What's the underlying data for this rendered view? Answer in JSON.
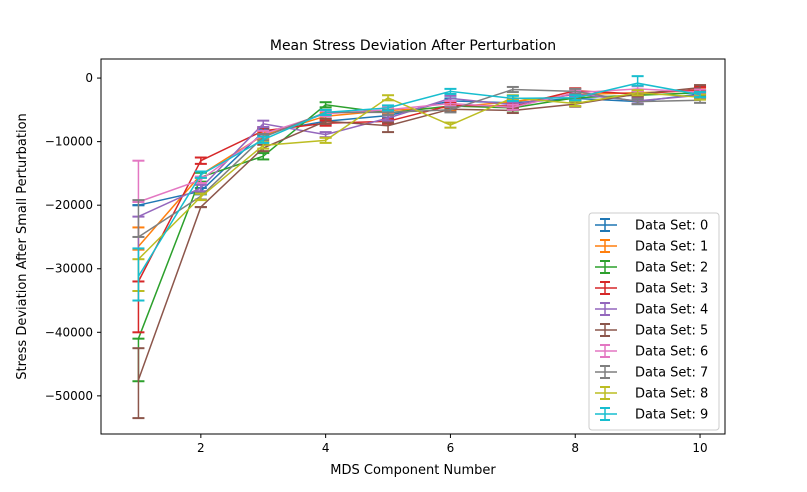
{
  "chart_data": {
    "type": "line",
    "title": "Mean Stress Deviation After Perturbation",
    "xlabel": "MDS Component Number",
    "ylabel": "Stress Deviation After Small Perturbation",
    "xlim": [
      0.4,
      10.4
    ],
    "ylim": [
      -56000,
      3000
    ],
    "xticks": [
      2,
      4,
      6,
      8,
      10
    ],
    "yticks": [
      0,
      -10000,
      -20000,
      -30000,
      -40000,
      -50000
    ],
    "xtick_labels": [
      "2",
      "4",
      "6",
      "8",
      "10"
    ],
    "ytick_labels": [
      "0",
      "−10000",
      "−20000",
      "−30000",
      "−40000",
      "−50000"
    ],
    "grid": false,
    "legend_position": "lower-right",
    "x": [
      1,
      2,
      3,
      4,
      5,
      6,
      7,
      8,
      9,
      10
    ],
    "series": [
      {
        "name": "Data Set: 0",
        "color": "#1f77b4",
        "values": [
          -20000,
          -17800,
          -8500,
          -6800,
          -5900,
          -3600,
          -3900,
          -3200,
          -3700,
          -2500
        ],
        "err_low": [
          -20000,
          -18300,
          -9000,
          -7200,
          -6300,
          -4000,
          -4300,
          -3600,
          -4100,
          -2900
        ],
        "err_high": [
          -20000,
          -17300,
          -8000,
          -6400,
          -5500,
          -3200,
          -3500,
          -2800,
          -3300,
          -2100
        ]
      },
      {
        "name": "Data Set: 1",
        "color": "#ff7f0e",
        "values": [
          -26500,
          -15200,
          -9000,
          -6000,
          -5100,
          -4600,
          -3700,
          -2600,
          -2300,
          -2000
        ],
        "err_low": [
          -27000,
          -15700,
          -9500,
          -6500,
          -5600,
          -5100,
          -4200,
          -3100,
          -2800,
          -2500
        ],
        "err_high": [
          -23500,
          -14700,
          -8500,
          -5500,
          -4600,
          -4100,
          -3200,
          -2100,
          -1800,
          -1500
        ]
      },
      {
        "name": "Data Set: 2",
        "color": "#2ca02c",
        "values": [
          -41000,
          -15600,
          -12300,
          -4200,
          -5500,
          -4400,
          -4700,
          -3100,
          -2700,
          -2300
        ],
        "err_low": [
          -47700,
          -16300,
          -12800,
          -4600,
          -5900,
          -4800,
          -5100,
          -3500,
          -3100,
          -2700
        ],
        "err_high": [
          -41000,
          -14900,
          -11800,
          -3800,
          -5100,
          -4000,
          -4300,
          -2700,
          -2300,
          -1900
        ]
      },
      {
        "name": "Data Set: 3",
        "color": "#d62728",
        "values": [
          -32000,
          -13000,
          -8300,
          -7100,
          -6800,
          -4300,
          -4400,
          -2000,
          -2500,
          -1800
        ],
        "err_low": [
          -40000,
          -13500,
          -8800,
          -7500,
          -7200,
          -4700,
          -4800,
          -2400,
          -2900,
          -2200
        ],
        "err_high": [
          -32000,
          -12500,
          -7800,
          -6700,
          -6400,
          -3900,
          -4000,
          -1600,
          -2100,
          -1400
        ]
      },
      {
        "name": "Data Set: 4",
        "color": "#9467bd",
        "values": [
          -21800,
          -17300,
          -7200,
          -8900,
          -6300,
          -3200,
          -4200,
          -2500,
          -3600,
          -2700
        ],
        "err_low": [
          -33500,
          -17800,
          -7700,
          -9300,
          -6700,
          -3600,
          -4600,
          -2900,
          -4000,
          -3100
        ],
        "err_high": [
          -21800,
          -16800,
          -6700,
          -8500,
          -5900,
          -2800,
          -3800,
          -2100,
          -3200,
          -2300
        ]
      },
      {
        "name": "Data Set: 5",
        "color": "#8c564b",
        "values": [
          -47500,
          -20300,
          -11000,
          -6800,
          -7500,
          -4900,
          -5100,
          -4100,
          -2500,
          -1500
        ],
        "err_low": [
          -53500,
          -20300,
          -11500,
          -7200,
          -8500,
          -5300,
          -5500,
          -4500,
          -2900,
          -1900
        ],
        "err_high": [
          -42500,
          -20300,
          -10500,
          -6400,
          -7000,
          -4500,
          -4700,
          -3700,
          -2100,
          -1100
        ]
      },
      {
        "name": "Data Set: 6",
        "color": "#e377c2",
        "values": [
          -19500,
          -16000,
          -8800,
          -5600,
          -5000,
          -4000,
          -4600,
          -2300,
          -1700,
          -2200
        ],
        "err_low": [
          -19500,
          -16500,
          -9300,
          -6000,
          -5400,
          -4400,
          -5000,
          -2700,
          -2100,
          -2600
        ],
        "err_high": [
          -13000,
          -15500,
          -8300,
          -5200,
          -4600,
          -3600,
          -4200,
          -1900,
          -1300,
          -1800
        ]
      },
      {
        "name": "Data Set: 7",
        "color": "#7f7f7f",
        "values": [
          -25000,
          -18600,
          -9300,
          -5400,
          -5400,
          -5000,
          -1800,
          -2100,
          -3700,
          -3500
        ],
        "err_low": [
          -25000,
          -19100,
          -9800,
          -5800,
          -5800,
          -5400,
          -2200,
          -2500,
          -4100,
          -3900
        ],
        "err_high": [
          -19200,
          -18100,
          -8800,
          -5000,
          -5000,
          -4600,
          -1400,
          -1700,
          -3300,
          -3100
        ]
      },
      {
        "name": "Data Set: 8",
        "color": "#bcbd22",
        "values": [
          -28500,
          -18700,
          -10600,
          -9800,
          -3100,
          -7400,
          -3100,
          -4000,
          -2300,
          -3000
        ],
        "err_low": [
          -33500,
          -19200,
          -11100,
          -10200,
          -3500,
          -7800,
          -3500,
          -4400,
          -2700,
          -3400
        ],
        "err_high": [
          -28500,
          -18200,
          -10100,
          -9400,
          -2700,
          -7000,
          -2700,
          -3600,
          -1900,
          -2600
        ]
      },
      {
        "name": "Data Set: 9",
        "color": "#17becf",
        "values": [
          -31200,
          -15200,
          -9700,
          -5400,
          -4700,
          -2100,
          -3200,
          -3100,
          -800,
          -2600
        ],
        "err_low": [
          -35000,
          -15700,
          -10200,
          -5800,
          -5100,
          -2500,
          -3600,
          -3500,
          -1200,
          -3000
        ],
        "err_high": [
          -26800,
          -14700,
          -9200,
          -5000,
          -4300,
          -1700,
          -2800,
          -2700,
          300,
          -2200
        ]
      }
    ]
  }
}
